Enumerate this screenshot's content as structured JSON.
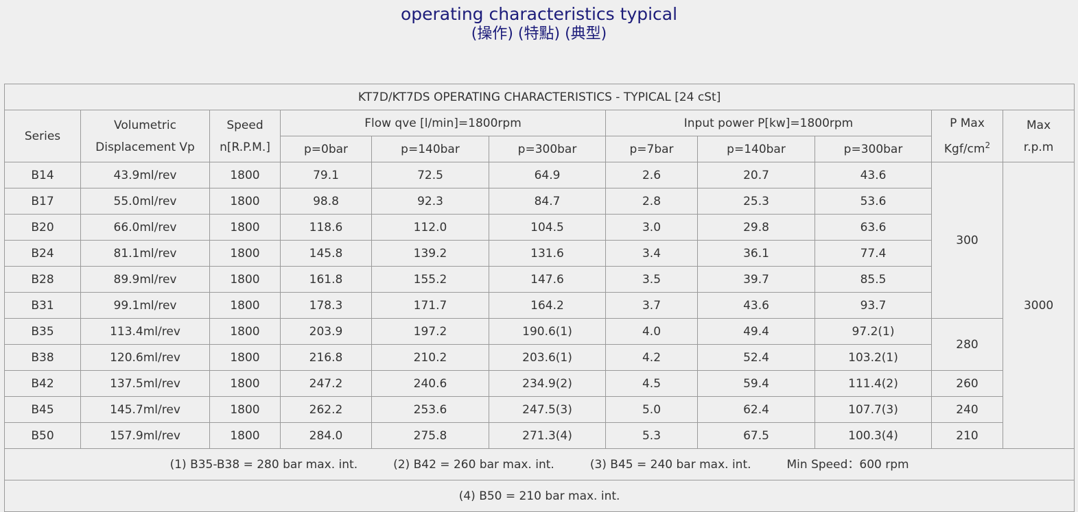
{
  "header": {
    "title": "operating characteristics typical",
    "subtitle": "(操作) (特點) (典型)"
  },
  "table": {
    "caption": "KT7D/KT7DS OPERATING CHARACTERISTICS - TYPICAL [24 cSt]",
    "columns": {
      "series": "Series",
      "displacement": [
        "Volumetric",
        "Displacement Vp"
      ],
      "speed": [
        "Speed",
        "n[R.P.M.]"
      ],
      "flow": {
        "title": "Flow qve [l/min]=1800rpm",
        "subs": [
          "p=0bar",
          "p=140bar",
          "p=300bar"
        ]
      },
      "power": {
        "title": "Input power P[kw]=1800rpm",
        "subs": [
          "p=7bar",
          "p=140bar",
          "p=300bar"
        ]
      },
      "pmax": {
        "line1": "P Max",
        "unit": "Kgf/cm",
        "sup": "2"
      },
      "maxrpm": [
        "Max",
        "r.p.m"
      ]
    },
    "max_rpm": "3000",
    "groups": [
      {
        "pmax": "300",
        "rows": [
          [
            "B14",
            "43.9ml/rev",
            "1800",
            "79.1",
            "72.5",
            "64.9",
            "2.6",
            "20.7",
            "43.6"
          ],
          [
            "B17",
            "55.0ml/rev",
            "1800",
            "98.8",
            "92.3",
            "84.7",
            "2.8",
            "25.3",
            "53.6"
          ],
          [
            "B20",
            "66.0ml/rev",
            "1800",
            "118.6",
            "112.0",
            "104.5",
            "3.0",
            "29.8",
            "63.6"
          ],
          [
            "B24",
            "81.1ml/rev",
            "1800",
            "145.8",
            "139.2",
            "131.6",
            "3.4",
            "36.1",
            "77.4"
          ],
          [
            "B28",
            "89.9ml/rev",
            "1800",
            "161.8",
            "155.2",
            "147.6",
            "3.5",
            "39.7",
            "85.5"
          ],
          [
            "B31",
            "99.1ml/rev",
            "1800",
            "178.3",
            "171.7",
            "164.2",
            "3.7",
            "43.6",
            "93.7"
          ]
        ]
      },
      {
        "pmax": "280",
        "rows": [
          [
            "B35",
            "113.4ml/rev",
            "1800",
            "203.9",
            "197.2",
            "190.6(1)",
            "4.0",
            "49.4",
            "97.2(1)"
          ],
          [
            "B38",
            "120.6ml/rev",
            "1800",
            "216.8",
            "210.2",
            "203.6(1)",
            "4.2",
            "52.4",
            "103.2(1)"
          ]
        ]
      },
      {
        "pmax": "260",
        "rows": [
          [
            "B42",
            "137.5ml/rev",
            "1800",
            "247.2",
            "240.6",
            "234.9(2)",
            "4.5",
            "59.4",
            "111.4(2)"
          ]
        ]
      },
      {
        "pmax": "240",
        "rows": [
          [
            "B45",
            "145.7ml/rev",
            "1800",
            "262.2",
            "253.6",
            "247.5(3)",
            "5.0",
            "62.4",
            "107.7(3)"
          ]
        ]
      },
      {
        "pmax": "210",
        "rows": [
          [
            "B50",
            "157.9ml/rev",
            "1800",
            "284.0",
            "275.8",
            "271.3(4)",
            "5.3",
            "67.5",
            "100.3(4)"
          ]
        ]
      }
    ],
    "notes": [
      "(1) B35-B38 = 280 bar max. int.",
      "(2) B42 = 260 bar max. int.",
      "(3) B45 = 240 bar max. int.",
      "Min Speed：600 rpm"
    ],
    "last_note": "(4) B50 = 210 bar max. int."
  }
}
